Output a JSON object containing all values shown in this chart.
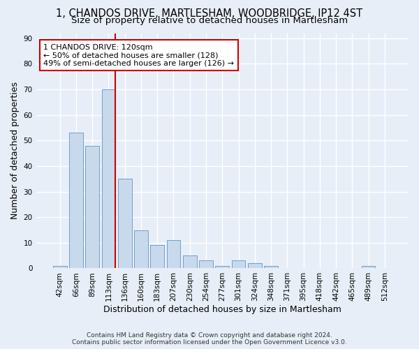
{
  "title_line1": "1, CHANDOS DRIVE, MARTLESHAM, WOODBRIDGE, IP12 4ST",
  "title_line2": "Size of property relative to detached houses in Martlesham",
  "xlabel": "Distribution of detached houses by size in Martlesham",
  "ylabel": "Number of detached properties",
  "categories": [
    "42sqm",
    "66sqm",
    "89sqm",
    "113sqm",
    "136sqm",
    "160sqm",
    "183sqm",
    "207sqm",
    "230sqm",
    "254sqm",
    "277sqm",
    "301sqm",
    "324sqm",
    "348sqm",
    "371sqm",
    "395sqm",
    "418sqm",
    "442sqm",
    "465sqm",
    "489sqm",
    "512sqm"
  ],
  "values": [
    1,
    53,
    48,
    70,
    35,
    15,
    9,
    11,
    5,
    3,
    1,
    3,
    2,
    1,
    0,
    0,
    0,
    0,
    0,
    1,
    0
  ],
  "bar_color": "#c9d9ec",
  "bar_edge_color": "#6fa0c8",
  "background_color": "#e8eef7",
  "grid_color": "#ffffff",
  "annotation_text": "1 CHANDOS DRIVE: 120sqm\n← 50% of detached houses are smaller (128)\n49% of semi-detached houses are larger (126) →",
  "annotation_box_color": "#ffffff",
  "annotation_box_edge": "#cc0000",
  "vline_color": "#cc0000",
  "ylim": [
    0,
    92
  ],
  "yticks": [
    0,
    10,
    20,
    30,
    40,
    50,
    60,
    70,
    80,
    90
  ],
  "footnote": "Contains HM Land Registry data © Crown copyright and database right 2024.\nContains public sector information licensed under the Open Government Licence v3.0.",
  "title_fontsize": 10.5,
  "subtitle_fontsize": 9.5,
  "axis_label_fontsize": 9,
  "tick_fontsize": 7.5,
  "annotation_fontsize": 8,
  "footnote_fontsize": 6.5
}
